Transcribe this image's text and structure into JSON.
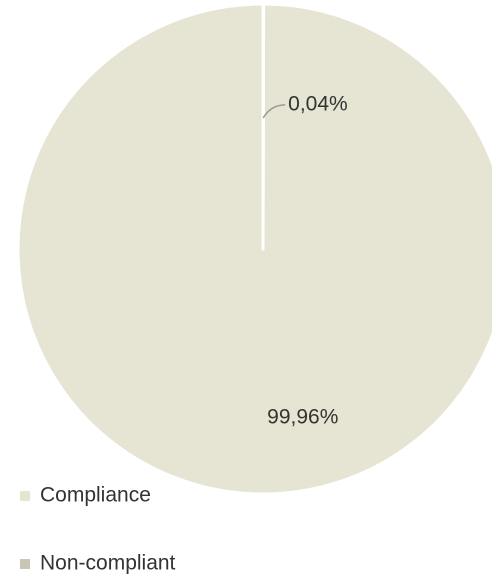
{
  "chart_data": {
    "type": "pie",
    "categories": [
      "Compliance",
      "Non-compliant"
    ],
    "values": [
      99.96,
      0.04
    ],
    "value_labels": [
      "99,96%",
      "0,04%"
    ],
    "colors": [
      "#e6e4d2",
      "#c9c6b4"
    ]
  }
}
